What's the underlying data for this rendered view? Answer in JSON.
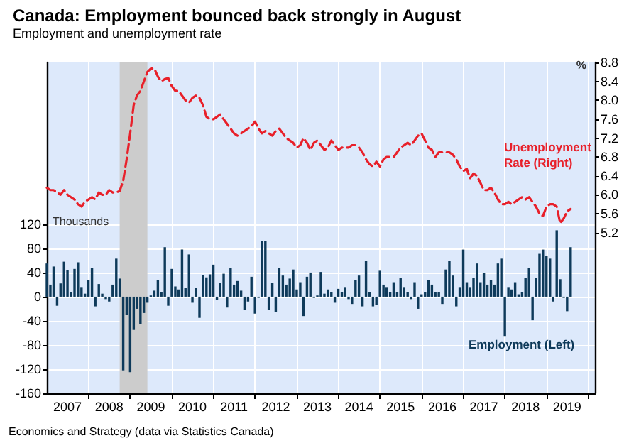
{
  "chart_data": {
    "type": "bar",
    "title": "Canada: Employment bounced back strongly in August",
    "subtitle": "Employment and unemployment rate",
    "annotations": [
      "Thousands",
      "%",
      "Economics and Strategy (data via Statistics Canada)"
    ],
    "x": [
      "2007-01",
      "2007-02",
      "2007-03",
      "2007-04",
      "2007-05",
      "2007-06",
      "2007-07",
      "2007-08",
      "2007-09",
      "2007-10",
      "2007-11",
      "2007-12",
      "2008-01",
      "2008-02",
      "2008-03",
      "2008-04",
      "2008-05",
      "2008-06",
      "2008-07",
      "2008-08",
      "2008-09",
      "2008-10",
      "2008-11",
      "2008-12",
      "2009-01",
      "2009-02",
      "2009-03",
      "2009-04",
      "2009-05",
      "2009-06",
      "2009-07",
      "2009-08",
      "2009-09",
      "2009-10",
      "2009-11",
      "2009-12",
      "2010-01",
      "2010-02",
      "2010-03",
      "2010-04",
      "2010-05",
      "2010-06",
      "2010-07",
      "2010-08",
      "2010-09",
      "2010-10",
      "2010-11",
      "2010-12",
      "2011-01",
      "2011-02",
      "2011-03",
      "2011-04",
      "2011-05",
      "2011-06",
      "2011-07",
      "2011-08",
      "2011-09",
      "2011-10",
      "2011-11",
      "2011-12",
      "2012-01",
      "2012-02",
      "2012-03",
      "2012-04",
      "2012-05",
      "2012-06",
      "2012-07",
      "2012-08",
      "2012-09",
      "2012-10",
      "2012-11",
      "2012-12",
      "2013-01",
      "2013-02",
      "2013-03",
      "2013-04",
      "2013-05",
      "2013-06",
      "2013-07",
      "2013-08",
      "2013-09",
      "2013-10",
      "2013-11",
      "2013-12",
      "2014-01",
      "2014-02",
      "2014-03",
      "2014-04",
      "2014-05",
      "2014-06",
      "2014-07",
      "2014-08",
      "2014-09",
      "2014-10",
      "2014-11",
      "2014-12",
      "2015-01",
      "2015-02",
      "2015-03",
      "2015-04",
      "2015-05",
      "2015-06",
      "2015-07",
      "2015-08",
      "2015-09",
      "2015-10",
      "2015-11",
      "2015-12",
      "2016-01",
      "2016-02",
      "2016-03",
      "2016-04",
      "2016-05",
      "2016-06",
      "2016-07",
      "2016-08",
      "2016-09",
      "2016-10",
      "2016-11",
      "2016-12",
      "2017-01",
      "2017-02",
      "2017-03",
      "2017-04",
      "2017-05",
      "2017-06",
      "2017-07",
      "2017-08",
      "2017-09",
      "2017-10",
      "2017-11",
      "2017-12",
      "2018-01",
      "2018-02",
      "2018-03",
      "2018-04",
      "2018-05",
      "2018-06",
      "2018-07",
      "2018-08",
      "2018-09",
      "2018-10",
      "2018-11",
      "2018-12",
      "2019-01",
      "2019-02",
      "2019-03",
      "2019-04",
      "2019-05",
      "2019-06",
      "2019-07",
      "2019-08"
    ],
    "series": [
      {
        "name": "Employment (Left)",
        "color": "#0e3a5a",
        "values": [
          55,
          20,
          50,
          -15,
          22,
          58,
          44,
          8,
          46,
          57,
          16,
          5,
          27,
          47,
          -16,
          21,
          5,
          -4,
          -8,
          20,
          63,
          30,
          -122,
          -30,
          -125,
          -55,
          -20,
          -45,
          -27,
          -10,
          2,
          10,
          28,
          8,
          82,
          -15,
          46,
          17,
          12,
          78,
          15,
          70,
          -10,
          15,
          -35,
          36,
          32,
          37,
          53,
          -5,
          23,
          38,
          -18,
          48,
          20,
          26,
          10,
          -22,
          -8,
          33,
          -28,
          -2,
          92,
          92,
          -22,
          23,
          -25,
          48,
          35,
          20,
          30,
          45,
          12,
          24,
          -32,
          33,
          40,
          -2,
          2,
          41,
          5,
          12,
          8,
          -10,
          13,
          8,
          16,
          -4,
          -12,
          27,
          35,
          -16,
          59,
          8,
          -16,
          -14,
          43,
          20,
          16,
          8,
          24,
          8,
          31,
          16,
          8,
          -4,
          24,
          -20,
          4,
          8,
          27,
          20,
          8,
          8,
          -12,
          45,
          59,
          35,
          -16,
          16,
          78,
          24,
          16,
          31,
          55,
          24,
          39,
          20,
          27,
          20,
          55,
          63,
          -65,
          16,
          12,
          24,
          4,
          8,
          31,
          47,
          -39,
          31,
          71,
          78,
          68,
          63,
          -8,
          110,
          29,
          -2,
          -24,
          82
        ]
      },
      {
        "name": "Unemployment Rate (Right)",
        "type": "line",
        "axis": "y2",
        "color": "#e8202a",
        "line_style": "dashed",
        "values": [
          6.15,
          6.1,
          6.1,
          6.05,
          6.0,
          6.1,
          6.0,
          5.95,
          5.9,
          5.8,
          5.75,
          5.85,
          5.9,
          5.95,
          5.9,
          6.05,
          6.0,
          6.0,
          6.1,
          6.05,
          6.05,
          6.08,
          6.3,
          6.75,
          7.3,
          7.9,
          8.1,
          8.2,
          8.4,
          8.6,
          8.67,
          8.67,
          8.5,
          8.4,
          8.45,
          8.47,
          8.3,
          8.2,
          8.2,
          8.1,
          8.0,
          7.95,
          8.05,
          8.1,
          8.05,
          7.9,
          7.65,
          7.6,
          7.6,
          7.65,
          7.7,
          7.6,
          7.5,
          7.4,
          7.3,
          7.25,
          7.3,
          7.35,
          7.4,
          7.45,
          7.55,
          7.4,
          7.3,
          7.35,
          7.3,
          7.25,
          7.35,
          7.4,
          7.3,
          7.2,
          7.15,
          7.1,
          7.0,
          7.05,
          7.2,
          7.1,
          6.95,
          7.1,
          7.15,
          7.05,
          6.95,
          7.0,
          7.15,
          7.05,
          6.95,
          7.0,
          7.0,
          7.0,
          7.05,
          7.05,
          7.0,
          6.9,
          6.75,
          6.65,
          6.6,
          6.7,
          6.6,
          6.75,
          6.8,
          6.8,
          6.8,
          6.9,
          7.0,
          7.05,
          7.1,
          7.05,
          7.15,
          7.25,
          7.3,
          7.15,
          7.0,
          6.95,
          6.8,
          6.9,
          6.9,
          6.9,
          6.9,
          6.85,
          6.75,
          6.6,
          6.5,
          6.55,
          6.35,
          6.45,
          6.4,
          6.25,
          6.1,
          6.1,
          6.15,
          6.05,
          5.9,
          5.8,
          5.8,
          5.85,
          5.8,
          5.85,
          5.9,
          5.95,
          5.9,
          5.95,
          5.85,
          5.75,
          5.6,
          5.55,
          5.75,
          5.8,
          5.8,
          5.75,
          5.4,
          5.5,
          5.65,
          5.7
        ]
      }
    ],
    "xlim": [
      "2007-01",
      "2020-03"
    ],
    "xticks": [
      {
        "value": "2008",
        "label": null
      },
      {
        "value": "2009",
        "label": null
      },
      {
        "value": "2010",
        "label": null
      },
      {
        "value": "2011",
        "label": null
      },
      {
        "value": "2012",
        "label": null
      },
      {
        "value": "2013",
        "label": null
      },
      {
        "value": "2014",
        "label": null
      },
      {
        "value": "2015",
        "label": null
      },
      {
        "value": "2016",
        "label": null
      },
      {
        "value": "2017",
        "label": null
      },
      {
        "value": "2018",
        "label": null
      },
      {
        "value": "2019",
        "label": null
      },
      {
        "value": "2020",
        "label": null
      },
      {
        "value": "2007-07",
        "label": "2007"
      },
      {
        "value": "2008-07",
        "label": "2008"
      },
      {
        "value": "2009-07",
        "label": "2009"
      },
      {
        "value": "2010-07",
        "label": "2010"
      },
      {
        "value": "2011-07",
        "label": "2011"
      },
      {
        "value": "2012-07",
        "label": "2012"
      },
      {
        "value": "2013-07",
        "label": "2013"
      },
      {
        "value": "2014-07",
        "label": "2014"
      },
      {
        "value": "2015-07",
        "label": "2015"
      },
      {
        "value": "2016-07",
        "label": "2016"
      },
      {
        "value": "2017-07",
        "label": "2017"
      },
      {
        "value": "2018-07",
        "label": "2018"
      },
      {
        "value": "2019-07",
        "label": "2019"
      }
    ],
    "ylim": [
      -160,
      388
    ],
    "yticks": [
      -160,
      -120,
      -80,
      -40,
      0,
      40,
      80,
      120
    ],
    "y2lim": [
      1.8,
      8.8
    ],
    "y2ticks": [
      5.2,
      5.6,
      {
        "value": 6,
        "label": "6.0"
      },
      6.4,
      6.8,
      7.2,
      7.6,
      {
        "value": 8,
        "label": "8.0"
      },
      8.4,
      8.8
    ],
    "bands": [
      {
        "axis": "x",
        "from": "2008-10",
        "to": "2009-06",
        "color": "#cccccc"
      }
    ],
    "grid": true,
    "legend": false,
    "marker": "none"
  }
}
